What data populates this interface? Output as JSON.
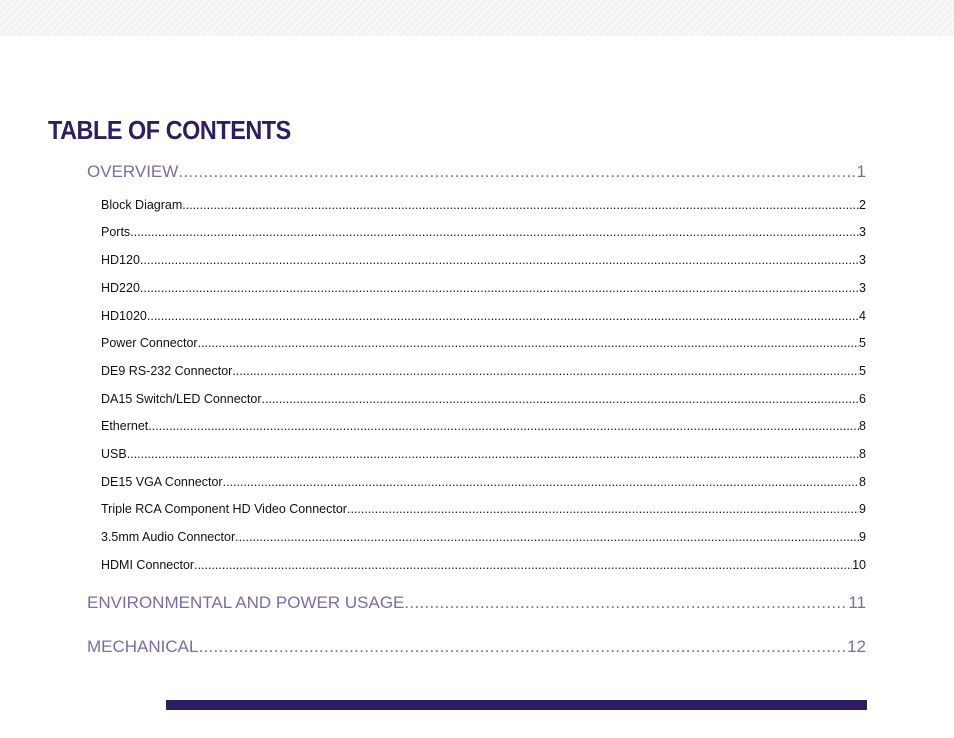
{
  "toc": {
    "title": "TABLE OF CONTENTS",
    "sections": [
      {
        "label": "OVERVIEW",
        "page": "1",
        "subsections": [
          {
            "label": "Block Diagram",
            "page": "2"
          },
          {
            "label": "Ports",
            "page": "3"
          },
          {
            "label": "HD120",
            "page": "3"
          },
          {
            "label": "HD220",
            "page": "3"
          },
          {
            "label": "HD1020",
            "page": "4"
          },
          {
            "label": "Power Connector",
            "page": "5"
          },
          {
            "label": "DE9 RS-232 Connector",
            "page": "5"
          },
          {
            "label": "DA15 Switch/LED Connector",
            "page": "6"
          },
          {
            "label": "Ethernet",
            "page": "8"
          },
          {
            "label": "USB",
            "page": "8"
          },
          {
            "label": "DE15 VGA Connector",
            "page": "8"
          },
          {
            "label": "Triple RCA Component HD Video Connector",
            "page": "9"
          },
          {
            "label": "3.5mm Audio Connector",
            "page": "9"
          },
          {
            "label": "HDMI Connector",
            "page": "10"
          }
        ]
      },
      {
        "label": "ENVIRONMENTAL AND POWER USAGE",
        "page": "11"
      },
      {
        "label": "MECHANICAL",
        "page": "12"
      }
    ]
  },
  "colors": {
    "title": "#2d1d62",
    "section_text": "#7e6aa8",
    "subsection_text": "#111111",
    "footer_bar": "#2d1d62"
  }
}
